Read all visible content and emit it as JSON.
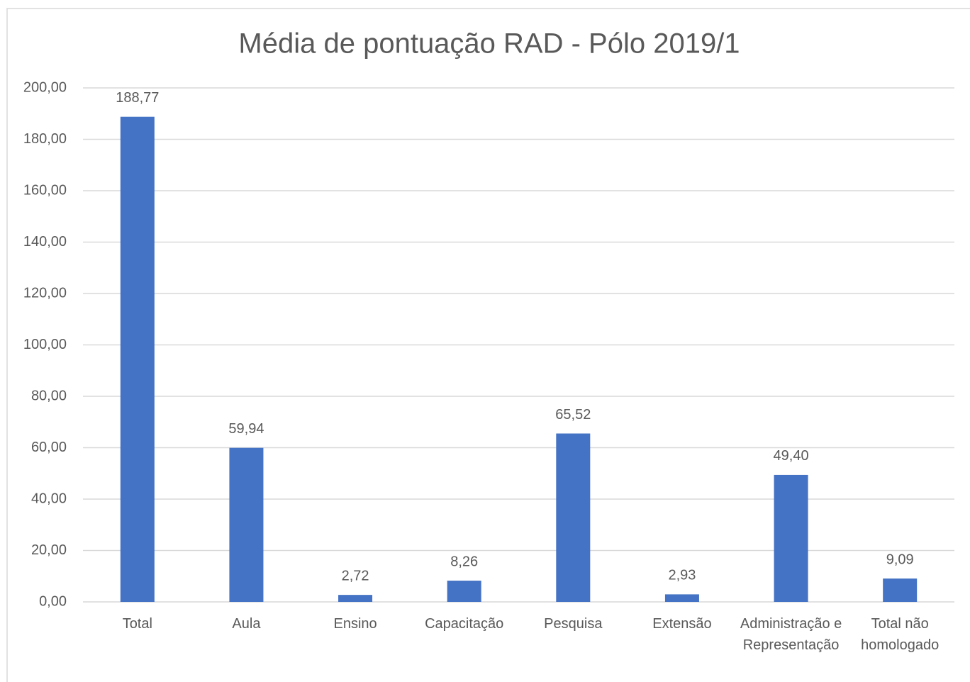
{
  "chart_data": {
    "type": "bar",
    "title": "Média de pontuação RAD - Pólo 2019/1",
    "categories": [
      "Total",
      "Aula",
      "Ensino",
      "Capacitação",
      "Pesquisa",
      "Extensão",
      "Administração e Representação",
      "Total não homologado"
    ],
    "values": [
      188.77,
      59.94,
      2.72,
      8.26,
      65.52,
      2.93,
      49.4,
      9.09
    ],
    "value_labels": [
      "188,77",
      "59,94",
      "2,72",
      "8,26",
      "65,52",
      "2,93",
      "49,40",
      "9,09"
    ],
    "color": "#4472c4",
    "ylim": [
      0,
      200
    ],
    "yticks": [
      {
        "value": 0,
        "label": "0,00"
      },
      {
        "value": 20,
        "label": "20,00"
      },
      {
        "value": 40,
        "label": "40,00"
      },
      {
        "value": 60,
        "label": "60,00"
      },
      {
        "value": 80,
        "label": "80,00"
      },
      {
        "value": 100,
        "label": "100,00"
      },
      {
        "value": 120,
        "label": "120,00"
      },
      {
        "value": 140,
        "label": "140,00"
      },
      {
        "value": 160,
        "label": "160,00"
      },
      {
        "value": 180,
        "label": "180,00"
      },
      {
        "value": 200,
        "label": "200,00"
      }
    ],
    "grid": true
  }
}
